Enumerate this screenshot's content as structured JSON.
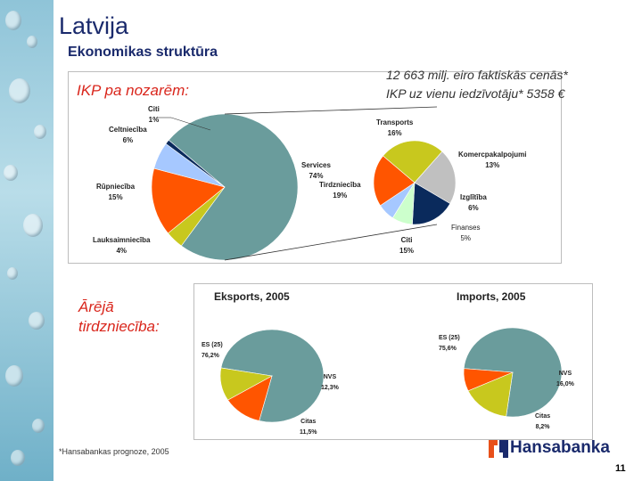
{
  "title": "Latvija",
  "subtitle": "Ekonomikas struktūra",
  "gdp_heading": "IKP pa nozarēm:",
  "gdp_total": "12 663 milj.  eiro faktiskās cenās*",
  "gdp_per_capita": "IKP uz vienu iedzīvotāju* 5358 €",
  "trade_heading": "Ārējā tirdzniecība:",
  "footnote": "*Hansabankas prognoze, 2005",
  "page_number": "11",
  "logo_text": "Hansabanka",
  "colors": {
    "teal": "#6a9c9c",
    "orange": "#ff5500",
    "lime": "#c8c81e",
    "lightblue": "#a6c8ff",
    "navy": "#0a2a5c",
    "gray": "#c0c0c0",
    "lightgreen": "#ccffcc",
    "accent": "#d9261c"
  },
  "chart_data": [
    {
      "type": "pie",
      "title": "",
      "slices": [
        {
          "label": "Services",
          "value": 74,
          "display": "74%",
          "color": "#6a9c9c"
        },
        {
          "label": "Lauksaimniecība",
          "value": 4,
          "display": "4%",
          "color": "#c8c81e"
        },
        {
          "label": "Rūpniecība",
          "value": 15,
          "display": "15%",
          "color": "#ff5500"
        },
        {
          "label": "Celtniecība",
          "value": 6,
          "display": "6%",
          "color": "#a6c8ff"
        },
        {
          "label": "Citi",
          "value": 1,
          "display": "1%",
          "color": "#0a2a5c"
        }
      ]
    },
    {
      "type": "pie",
      "title": "",
      "slices": [
        {
          "label": "Komercpakalpojumi",
          "value": 13,
          "display": "13%",
          "color": "#0a2a5c"
        },
        {
          "label": "Izglītība",
          "value": 6,
          "display": "6%",
          "color": "#ccffcc"
        },
        {
          "label": "Finanses",
          "value": 5,
          "display": "5%",
          "color": "#a6c8ff"
        },
        {
          "label": "Citi",
          "value": 15,
          "display": "15%",
          "color": "#ff5500"
        },
        {
          "label": "Tirdzniecība",
          "value": 19,
          "display": "19%",
          "color": "#c8c81e"
        },
        {
          "label": "Transports",
          "value": 16,
          "display": "16%",
          "color": "#c0c0c0"
        }
      ]
    },
    {
      "type": "pie",
      "title": "Eksports, 2005",
      "slices": [
        {
          "label": "ES (25)",
          "value": 76.2,
          "display": "76,2%",
          "color": "#6a9c9c"
        },
        {
          "label": "NVS",
          "value": 12.3,
          "display": "12,3%",
          "color": "#ff5500"
        },
        {
          "label": "Citas",
          "value": 11.5,
          "display": "11,5%",
          "color": "#c8c81e"
        }
      ]
    },
    {
      "type": "pie",
      "title": "Imports, 2005",
      "slices": [
        {
          "label": "ES (25)",
          "value": 75.6,
          "display": "75,6%",
          "color": "#6a9c9c"
        },
        {
          "label": "NVS",
          "value": 16.0,
          "display": "16,0%",
          "color": "#c8c81e"
        },
        {
          "label": "Citas",
          "value": 8.2,
          "display": "8,2%",
          "color": "#ff5500"
        }
      ]
    }
  ]
}
